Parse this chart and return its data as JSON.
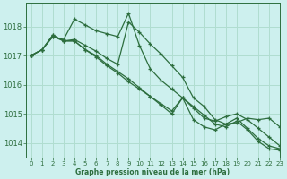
{
  "title": "Graphe pression niveau de la mer (hPa)",
  "bg_color": "#cdf0ee",
  "grid_color": "#b0ddd0",
  "line_color": "#2d6e3e",
  "xlim": [
    -0.5,
    23
  ],
  "ylim": [
    1013.5,
    1018.8
  ],
  "yticks": [
    1014,
    1015,
    1016,
    1017,
    1018
  ],
  "xticks": [
    0,
    1,
    2,
    3,
    4,
    5,
    6,
    7,
    8,
    9,
    10,
    11,
    12,
    13,
    14,
    15,
    16,
    17,
    18,
    19,
    20,
    21,
    22,
    23
  ],
  "series": [
    [
      1017.0,
      1017.2,
      1017.7,
      1017.5,
      1017.55,
      1017.35,
      1017.15,
      1016.9,
      1016.7,
      1018.15,
      1017.8,
      1017.4,
      1017.05,
      1016.65,
      1016.25,
      1015.55,
      1015.25,
      1014.8,
      1014.65,
      1014.85,
      1014.5,
      1014.15,
      1013.9,
      1013.8
    ],
    [
      1017.0,
      1017.2,
      1017.7,
      1017.5,
      1017.5,
      1017.2,
      1017.0,
      1016.7,
      1016.45,
      1016.2,
      1015.9,
      1015.6,
      1015.3,
      1015.0,
      1015.55,
      1015.2,
      1014.85,
      1014.75,
      1014.9,
      1015.0,
      1014.8,
      1014.5,
      1014.2,
      1013.9
    ],
    [
      1017.0,
      1017.2,
      1017.65,
      1017.5,
      1017.5,
      1017.2,
      1016.95,
      1016.65,
      1016.4,
      1016.1,
      1015.85,
      1015.6,
      1015.35,
      1015.1,
      1015.55,
      1014.8,
      1014.55,
      1014.45,
      1014.65,
      1014.7,
      1014.85,
      1014.8,
      1014.85,
      1014.55
    ],
    [
      1017.0,
      1017.2,
      1017.65,
      1017.55,
      1018.25,
      1018.05,
      1017.85,
      1017.75,
      1017.65,
      1018.45,
      1017.35,
      1016.55,
      1016.15,
      1015.85,
      1015.55,
      1015.25,
      1014.95,
      1014.65,
      1014.55,
      1014.75,
      1014.45,
      1014.05,
      1013.8,
      1013.75
    ]
  ]
}
